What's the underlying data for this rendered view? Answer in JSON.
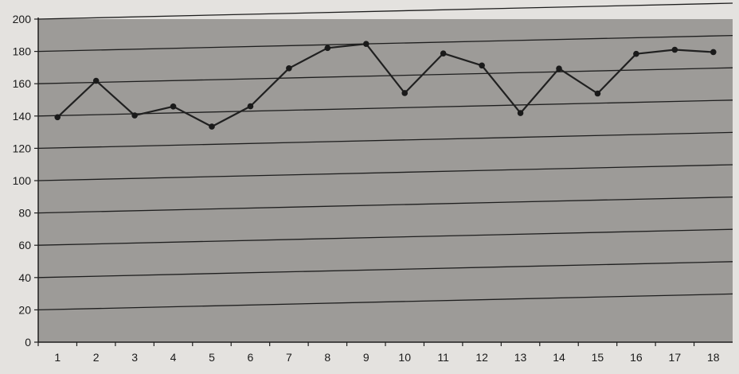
{
  "chart_data": {
    "type": "line",
    "title": "",
    "xlabel": "",
    "ylabel": "",
    "x": [
      1,
      2,
      3,
      4,
      5,
      6,
      7,
      8,
      9,
      10,
      11,
      12,
      13,
      14,
      15,
      16,
      17,
      18
    ],
    "series": [
      {
        "values": [
          139,
          161,
          139,
          144,
          131,
          143,
          166,
          178,
          180,
          149,
          173,
          165,
          135,
          162,
          146,
          170,
          172,
          170
        ]
      }
    ],
    "y_ticks": [
      0,
      20,
      40,
      60,
      80,
      100,
      120,
      140,
      160,
      180,
      200
    ],
    "ylim": [
      0,
      200
    ],
    "grid": "horizontal",
    "legend": "none",
    "colors": {
      "plot_background": "#9d9b98",
      "page_background": "#e4e2df",
      "gridline": "#1e1e1e",
      "line": "#202020",
      "marker": "#1a1a1a",
      "text": "#1a1a1a"
    }
  }
}
